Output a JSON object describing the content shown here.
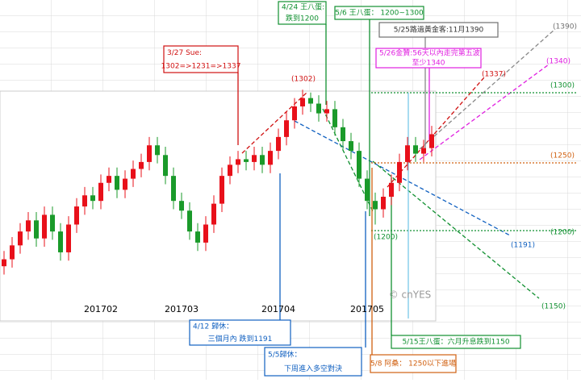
{
  "chart_data": {
    "type": "candlestick",
    "categories": [
      null,
      null,
      null,
      null,
      null,
      null,
      null,
      null,
      null,
      null,
      null,
      null,
      "201702",
      null,
      null,
      null,
      null,
      null,
      null,
      null,
      null,
      null,
      "201703",
      null,
      null,
      null,
      null,
      null,
      null,
      null,
      null,
      null,
      null,
      null,
      "201704",
      null,
      null,
      null,
      null,
      null,
      null,
      null,
      null,
      null,
      null,
      "201705",
      null,
      null,
      null,
      null,
      null,
      null,
      null,
      null
    ],
    "open": [
      1175,
      1180,
      1190,
      1200,
      1208,
      1195,
      1212,
      1200,
      1185,
      1205,
      1218,
      1226,
      1222,
      1235,
      1240,
      1230,
      1238,
      1245,
      1250,
      1262,
      1255,
      1240,
      1222,
      1215,
      1200,
      1192,
      1205,
      1220,
      1240,
      1248,
      1252,
      1250,
      1255,
      1248,
      1258,
      1268,
      1280,
      1290,
      1296,
      1292,
      1285,
      1288,
      1275,
      1265,
      1258,
      1238,
      1222,
      1216,
      1225,
      1235,
      1250,
      1262,
      1256,
      1260
    ],
    "high": [
      1186,
      1196,
      1206,
      1214,
      1214,
      1218,
      1218,
      1206,
      1211,
      1224,
      1232,
      1232,
      1241,
      1246,
      1246,
      1244,
      1251,
      1256,
      1268,
      1268,
      1261,
      1246,
      1228,
      1221,
      1206,
      1211,
      1226,
      1246,
      1254,
      1258,
      1258,
      1261,
      1261,
      1264,
      1274,
      1286,
      1296,
      1302,
      1300,
      1298,
      1294,
      1294,
      1281,
      1271,
      1264,
      1244,
      1228,
      1231,
      1241,
      1256,
      1268,
      1268,
      1266,
      1276
    ],
    "low": [
      1169,
      1174,
      1184,
      1194,
      1189,
      1189,
      1194,
      1179,
      1179,
      1199,
      1212,
      1216,
      1216,
      1229,
      1224,
      1224,
      1232,
      1239,
      1244,
      1249,
      1234,
      1216,
      1209,
      1194,
      1186,
      1186,
      1199,
      1214,
      1234,
      1242,
      1244,
      1244,
      1242,
      1242,
      1252,
      1262,
      1274,
      1284,
      1286,
      1279,
      1279,
      1269,
      1259,
      1252,
      1232,
      1216,
      1205,
      1210,
      1219,
      1229,
      1244,
      1250,
      1250,
      1254
    ],
    "close": [
      1180,
      1190,
      1200,
      1208,
      1195,
      1212,
      1200,
      1185,
      1205,
      1218,
      1226,
      1222,
      1235,
      1240,
      1230,
      1238,
      1245,
      1250,
      1262,
      1255,
      1240,
      1222,
      1215,
      1200,
      1192,
      1205,
      1220,
      1240,
      1248,
      1252,
      1250,
      1255,
      1248,
      1258,
      1268,
      1280,
      1290,
      1296,
      1292,
      1285,
      1288,
      1275,
      1265,
      1258,
      1238,
      1222,
      1216,
      1225,
      1235,
      1250,
      1262,
      1256,
      1260,
      1270
    ],
    "ylim": [
      1149,
      1301
    ],
    "up_color": "#e8101a",
    "down_color": "#1a9a2a",
    "watermark": "© cnYES",
    "price_labels": [
      {
        "text": "(1302)",
        "color": "#d01010"
      },
      {
        "text": "(1390)",
        "color": "#707070"
      },
      {
        "text": "(1340)",
        "color": "#e020e0"
      },
      {
        "text": "(1337)",
        "color": "#d01010"
      },
      {
        "text": "(1300)",
        "color": "#109030"
      },
      {
        "text": "(1250)",
        "color": "#d06010"
      },
      {
        "text": "(1200)",
        "color": "#109030"
      },
      {
        "text": "(1200)",
        "color": "#109030"
      },
      {
        "text": "(1191)",
        "color": "#1060c0"
      },
      {
        "text": "(1150)",
        "color": "#109030"
      }
    ],
    "annotations": [
      {
        "lines": [
          "3/27 Sue:",
          "1302=>1231=>1337"
        ],
        "color": "#d01010"
      },
      {
        "lines": [
          "4/24 王八蛋:",
          "跌到1200"
        ],
        "color": "#109030"
      },
      {
        "lines": [
          "5/6 王八蛋：   1200~1300"
        ],
        "color": "#109030"
      },
      {
        "lines": [
          "5/25路過黃金客:11月1390"
        ],
        "color": "#707070"
      },
      {
        "lines": [
          "5/26金贊:56天以內走完第五波",
          "至少1340"
        ],
        "color": "#e020e0"
      },
      {
        "lines": [
          "4/12 歸休：",
          "三個月內  跌到1191"
        ],
        "color": "#1060c0"
      },
      {
        "lines": [
          "5/5歸休：",
          "下周進入多空對決"
        ],
        "color": "#1060c0"
      },
      {
        "lines": [
          "5/8 阿桑：    1250以下進場"
        ],
        "color": "#d06010"
      },
      {
        "lines": [
          "5/15王八蛋：六月升息跌到1150"
        ],
        "color": "#109030"
      }
    ]
  }
}
